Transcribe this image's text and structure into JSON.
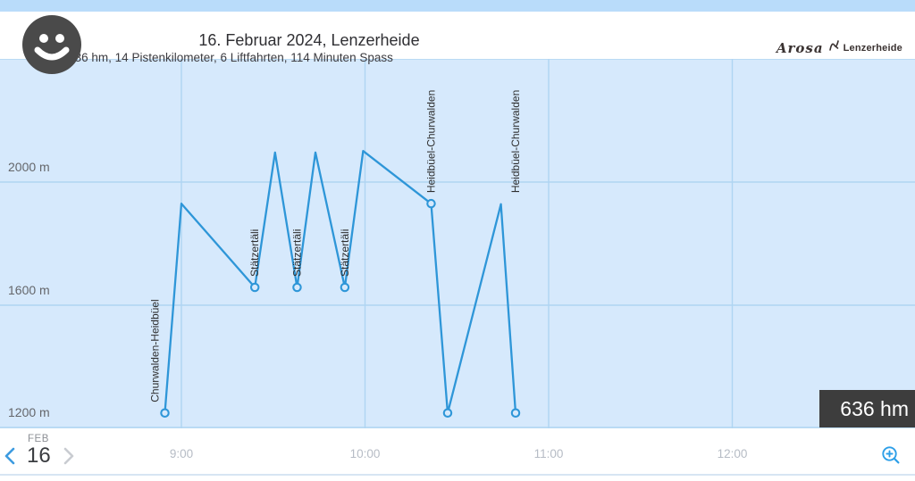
{
  "header": {
    "title": "16. Februar 2024, Lenzerheide",
    "subtitle": "636 hm, 14 Pistenkilometer, 6 Liftfahrten, 114 Minuten Spass",
    "logo_script": "Arosa",
    "logo_name": "Lenzerheide"
  },
  "summary_badge": "636 hm",
  "date_nav": {
    "month": "FEB",
    "day": "16",
    "prev_enabled": true,
    "next_enabled": false
  },
  "colors": {
    "accent_blue": "#2e96d8",
    "chart_bg": "#d6e9fc",
    "top_strip": "#b9dcfa",
    "gridline": "#afd5f2",
    "badge_bg": "#3d3d3d",
    "nav_active": "#3d9be0",
    "nav_disabled": "#c9ccd1",
    "piste_label_text": "#2d2d2d",
    "y_label_text": "#64666a",
    "time_label_text": "#b6bcc5"
  },
  "chart_data": {
    "type": "line",
    "title": "16. Februar 2024, Lenzerheide",
    "xlabel": "",
    "ylabel": "",
    "xlim_hours": [
      8.01,
      13.0
    ],
    "ylim_m": [
      1200,
      2400
    ],
    "grid": true,
    "legend": false,
    "line_color": "#2e96d8",
    "x_ticks": [
      {
        "t": 9,
        "label": "9:00"
      },
      {
        "t": 10,
        "label": "10:00"
      },
      {
        "t": 11,
        "label": "11:00"
      },
      {
        "t": 12,
        "label": "12:00"
      }
    ],
    "y_gridlines": [
      {
        "alt": 2400,
        "label": ""
      },
      {
        "alt": 2000,
        "label": "2000 m"
      },
      {
        "alt": 1600,
        "label": "1600 m"
      },
      {
        "alt": 1200,
        "label": "1200 m"
      }
    ],
    "series": [
      {
        "name": "altitude-track",
        "points": [
          {
            "t": 8.91,
            "alt": 1250,
            "marker": true,
            "label": "Churwalden-Heidbüel",
            "label_dx": -11
          },
          {
            "t": 9.0,
            "alt": 1930,
            "marker": false
          },
          {
            "t": 9.4,
            "alt": 1658,
            "marker": true,
            "label": "Stätzertäli"
          },
          {
            "t": 9.51,
            "alt": 2096,
            "marker": false
          },
          {
            "t": 9.63,
            "alt": 1658,
            "marker": true,
            "label": "Stätzertäli"
          },
          {
            "t": 9.73,
            "alt": 2096,
            "marker": false
          },
          {
            "t": 9.89,
            "alt": 1658,
            "marker": true,
            "label": "Stätzertäli"
          },
          {
            "t": 9.99,
            "alt": 2101,
            "marker": false
          },
          {
            "t": 10.36,
            "alt": 1930,
            "marker": true,
            "label": "Heidbüel-Churwalden"
          },
          {
            "t": 10.45,
            "alt": 1250,
            "marker": true
          },
          {
            "t": 10.74,
            "alt": 1928,
            "marker": false
          },
          {
            "t": 10.82,
            "alt": 1250,
            "marker": true,
            "label": "Heidbüel-Churwalden",
            "label_anchor_alt": 1930
          }
        ]
      }
    ]
  }
}
